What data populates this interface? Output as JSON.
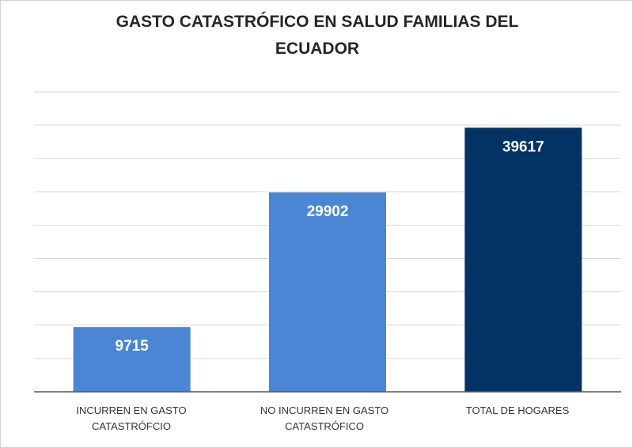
{
  "chart_data": {
    "type": "bar",
    "title_lines": [
      "GASTO CATASTRÓFICO  EN SALUD FAMILIAS DEL",
      "ECUADOR"
    ],
    "categories": [
      "INCURREN EN GASTO CATASTRÓFCIO",
      "NO INCURREN EN GASTO CATASTRÓFICO",
      "TOTAL DE HOGARES"
    ],
    "category_lines": [
      [
        "INCURREN EN GASTO",
        "CATASTRÓFCIO"
      ],
      [
        "NO INCURREN EN GASTO",
        "CATASTRÓFICO"
      ],
      [
        "TOTAL DE HOGARES"
      ]
    ],
    "values": [
      9715,
      29902,
      39617
    ],
    "data_labels": [
      "9715",
      "29902",
      "39617"
    ],
    "colors": [
      "#4a86d4",
      "#4a86d4",
      "#033264"
    ],
    "xlabel": "",
    "ylabel": "",
    "ylim": [
      0,
      45000
    ],
    "grid": true,
    "legend": "none"
  }
}
